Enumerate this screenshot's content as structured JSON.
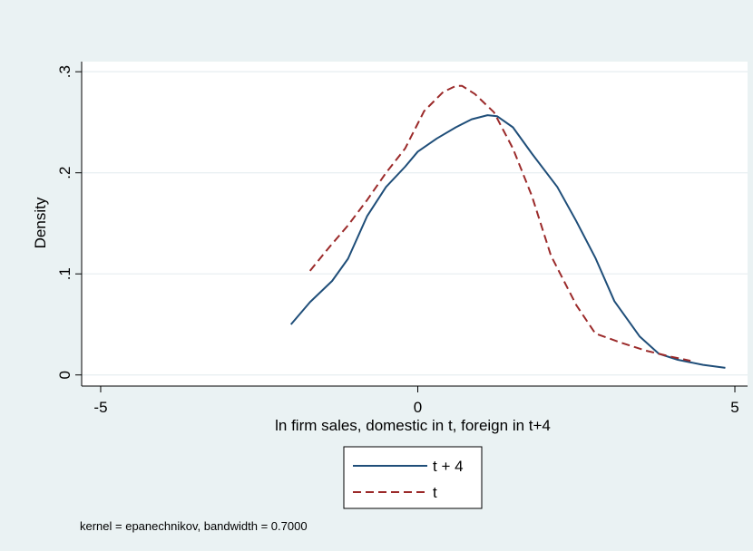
{
  "chart_data": {
    "type": "line",
    "title": "",
    "xlabel": "ln firm sales, domestic in t, foreign in t+4",
    "ylabel": "Density",
    "xlim": [
      -5.3,
      5.2
    ],
    "ylim": [
      -0.011,
      0.31
    ],
    "x_ticks": [
      -5,
      0,
      5
    ],
    "x_tick_labels": [
      "-5",
      "0",
      "5"
    ],
    "y_ticks": [
      0,
      0.1,
      0.2,
      0.3
    ],
    "y_tick_labels": [
      "0",
      ".1",
      ".2",
      ".3"
    ],
    "grid": "horizontal",
    "legend_position": "bottom",
    "note": "kernel = epanechnikov, bandwidth = 0.7000",
    "series": [
      {
        "name": "t + 4",
        "color": "#1f4e79",
        "dash": "solid",
        "x": [
          -2.0,
          -1.7,
          -1.35,
          -1.1,
          -0.8,
          -0.5,
          -0.2,
          0.0,
          0.3,
          0.6,
          0.85,
          1.1,
          1.25,
          1.5,
          1.8,
          2.2,
          2.5,
          2.8,
          3.1,
          3.5,
          3.8,
          4.1,
          4.5,
          4.85
        ],
        "y": [
          0.05,
          0.072,
          0.093,
          0.115,
          0.157,
          0.186,
          0.206,
          0.221,
          0.234,
          0.245,
          0.253,
          0.257,
          0.256,
          0.245,
          0.219,
          0.186,
          0.152,
          0.116,
          0.073,
          0.038,
          0.021,
          0.015,
          0.01,
          0.007
        ]
      },
      {
        "name": "t",
        "color": "#9b2a2a",
        "dash": "dashed",
        "x": [
          -1.7,
          -1.4,
          -1.1,
          -0.8,
          -0.5,
          -0.2,
          0.1,
          0.4,
          0.6,
          0.7,
          0.9,
          1.2,
          1.5,
          1.8,
          2.1,
          2.5,
          2.8,
          3.2,
          3.6,
          4.0,
          4.3
        ],
        "y": [
          0.103,
          0.126,
          0.148,
          0.173,
          0.2,
          0.224,
          0.261,
          0.28,
          0.286,
          0.286,
          0.278,
          0.26,
          0.224,
          0.177,
          0.118,
          0.069,
          0.041,
          0.032,
          0.024,
          0.018,
          0.014
        ]
      }
    ]
  }
}
